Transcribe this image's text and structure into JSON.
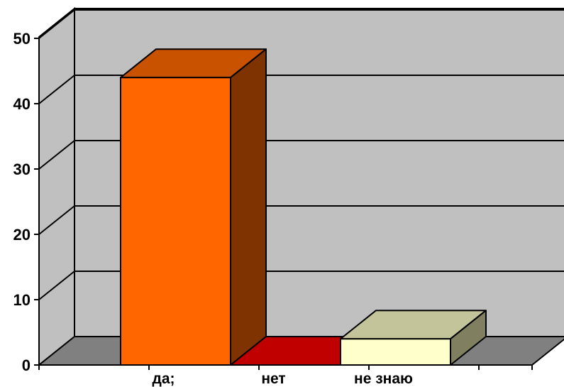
{
  "chart_data": {
    "type": "bar",
    "title": "",
    "xlabel": "",
    "ylabel": "",
    "categories": [
      "да;",
      "нет",
      "не знаю"
    ],
    "values": [
      44,
      0,
      4
    ],
    "ylim": [
      0,
      50
    ],
    "yticks": [
      "0",
      "10",
      "20",
      "30",
      "40",
      "50"
    ],
    "grid": true,
    "legend": "none",
    "colors": {
      "bars": [
        {
          "front": "#ff6600",
          "top": "#c85200",
          "side": "#7f3300"
        },
        {
          "front": "#c00000",
          "top": "#c00000",
          "side": "#800000"
        },
        {
          "front": "#ffffcc",
          "top": "#c4c49a",
          "side": "#808060"
        }
      ],
      "wall": "#c0c0c0",
      "floor": "#808080",
      "grid": "#000000"
    }
  }
}
